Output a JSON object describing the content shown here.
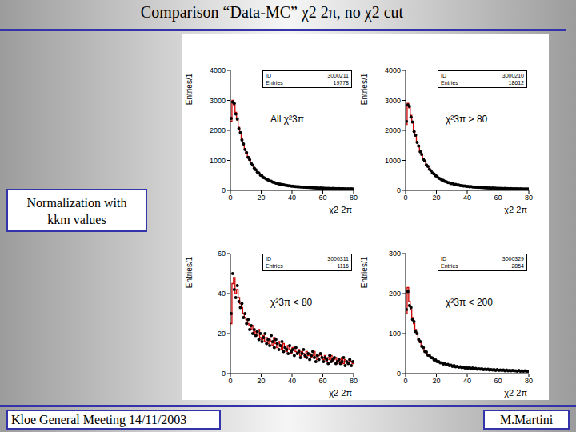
{
  "slide": {
    "title": "Comparison “Data-MC” χ2 2π, no χ2 cut",
    "note": [
      "Normalization with",
      "kkm values"
    ],
    "footer_left": "Kloe General Meeting 14/11/2003",
    "footer_right": "M.Martini"
  },
  "chart_data": [
    {
      "type": "histogram",
      "annotation": "All χ²3π",
      "stats": [
        [
          "ID",
          "3000211"
        ],
        [
          "Entries",
          "19778"
        ]
      ],
      "xlabel": "χ2 2π",
      "ylabel": "Entries/1",
      "xlim": [
        0,
        80
      ],
      "xticks": [
        0,
        20,
        40,
        60,
        80
      ],
      "ylim": [
        0,
        4000
      ],
      "yticks": [
        0,
        1000,
        2000,
        3000,
        4000
      ],
      "grid": false,
      "bins": [
        0,
        1,
        2,
        3,
        4,
        5,
        6,
        7,
        8,
        9,
        10,
        11,
        12,
        13,
        14,
        15,
        16,
        17,
        18,
        19,
        20,
        21,
        22,
        23,
        24,
        25,
        26,
        27,
        28,
        29,
        30,
        31,
        32,
        33,
        34,
        35,
        36,
        37,
        38,
        39,
        40,
        41,
        42,
        43,
        44,
        45,
        46,
        47,
        48,
        49,
        50,
        51,
        52,
        53,
        54,
        55,
        56,
        57,
        58,
        59,
        60,
        61,
        62,
        63,
        64,
        65,
        66,
        67,
        68,
        69,
        70,
        71,
        72,
        73,
        74,
        75,
        76,
        77,
        78,
        79,
        80
      ],
      "series": [
        {
          "type": "line",
          "line_style": "step",
          "color": "#cc0000",
          "values": [
            2300,
            3000,
            2850,
            2600,
            2350,
            2100,
            1900,
            1700,
            1530,
            1380,
            1240,
            1120,
            1010,
            910,
            830,
            750,
            680,
            620,
            570,
            520,
            480,
            440,
            405,
            375,
            345,
            320,
            300,
            280,
            262,
            246,
            232,
            218,
            206,
            195,
            185,
            176,
            167,
            159,
            152,
            145,
            139,
            133,
            128,
            123,
            118,
            114,
            110,
            106,
            102,
            99,
            96,
            93,
            90,
            87,
            85,
            82,
            80,
            78,
            76,
            74,
            72,
            70,
            68,
            67,
            65,
            64,
            62,
            61,
            60,
            58,
            57,
            56,
            55,
            54,
            53,
            52,
            51,
            50,
            49,
            48
          ]
        },
        {
          "type": "scatter",
          "marker": "circle",
          "color": "#000000",
          "values": [
            2400,
            2950,
            2900,
            2550,
            2380,
            2060,
            1930,
            1680,
            1550,
            1360,
            1260,
            1100,
            1030,
            900,
            840,
            740,
            690,
            610,
            580,
            510,
            490,
            430,
            410,
            370,
            350,
            315,
            305,
            275,
            265,
            240,
            235,
            215,
            210,
            192,
            188,
            172,
            170,
            155,
            155,
            142,
            141,
            130,
            130,
            120,
            120,
            112,
            112,
            104,
            104,
            97,
            98,
            91,
            92,
            85,
            87,
            80,
            82,
            76,
            78,
            72,
            74,
            68,
            70,
            65,
            67,
            62,
            64,
            59,
            62,
            56,
            59,
            54,
            57,
            52,
            55,
            50,
            53,
            48,
            51,
            46
          ]
        }
      ]
    },
    {
      "type": "histogram",
      "annotation": "χ²3π > 80",
      "stats": [
        [
          "ID",
          "3000210"
        ],
        [
          "Entries",
          "18612"
        ]
      ],
      "xlabel": "χ2 2π",
      "ylabel": "Entries/1",
      "xlim": [
        0,
        80
      ],
      "xticks": [
        0,
        20,
        40,
        60,
        80
      ],
      "ylim": [
        0,
        4000
      ],
      "yticks": [
        0,
        1000,
        2000,
        3000,
        4000
      ],
      "grid": false,
      "bins": [
        0,
        1,
        2,
        3,
        4,
        5,
        6,
        7,
        8,
        9,
        10,
        11,
        12,
        13,
        14,
        15,
        16,
        17,
        18,
        19,
        20,
        21,
        22,
        23,
        24,
        25,
        26,
        27,
        28,
        29,
        30,
        31,
        32,
        33,
        34,
        35,
        36,
        37,
        38,
        39,
        40,
        41,
        42,
        43,
        44,
        45,
        46,
        47,
        48,
        49,
        50,
        51,
        52,
        53,
        54,
        55,
        56,
        57,
        58,
        59,
        60,
        61,
        62,
        63,
        64,
        65,
        66,
        67,
        68,
        69,
        70,
        71,
        72,
        73,
        74,
        75,
        76,
        77,
        78,
        79,
        80
      ],
      "series": [
        {
          "type": "line",
          "line_style": "step",
          "color": "#cc0000",
          "values": [
            2200,
            2900,
            2750,
            2500,
            2250,
            2000,
            1810,
            1620,
            1460,
            1310,
            1180,
            1060,
            960,
            865,
            790,
            710,
            645,
            590,
            540,
            495,
            455,
            420,
            385,
            355,
            330,
            305,
            285,
            265,
            250,
            235,
            220,
            207,
            196,
            185,
            176,
            167,
            159,
            151,
            144,
            138,
            132,
            126,
            121,
            117,
            112,
            108,
            104,
            100,
            97,
            94,
            91,
            88,
            85,
            83,
            80,
            78,
            76,
            74,
            72,
            70,
            68,
            66,
            65,
            63,
            62,
            60,
            59,
            58,
            57,
            55,
            54,
            53,
            52,
            51,
            50,
            49,
            48,
            47,
            46,
            46
          ]
        },
        {
          "type": "scatter",
          "marker": "circle",
          "color": "#000000",
          "values": [
            2300,
            2850,
            2800,
            2450,
            2280,
            1960,
            1840,
            1600,
            1480,
            1290,
            1200,
            1040,
            980,
            850,
            800,
            700,
            655,
            580,
            550,
            485,
            465,
            410,
            390,
            350,
            335,
            300,
            290,
            260,
            255,
            230,
            225,
            203,
            200,
            181,
            180,
            163,
            163,
            147,
            148,
            135,
            135,
            123,
            124,
            114,
            115,
            105,
            107,
            98,
            100,
            92,
            93,
            86,
            87,
            81,
            82,
            76,
            78,
            72,
            74,
            68,
            70,
            64,
            67,
            61,
            64,
            58,
            61,
            56,
            59,
            53,
            56,
            51,
            54,
            49,
            52,
            47,
            50,
            45,
            48,
            44
          ]
        }
      ]
    },
    {
      "type": "histogram",
      "annotation": "χ²3π < 80",
      "stats": [
        [
          "ID",
          "3000311"
        ],
        [
          "Entries",
          "1116"
        ]
      ],
      "xlabel": "χ2 2π",
      "ylabel": "Entries/1",
      "xlim": [
        0,
        80
      ],
      "xticks": [
        0,
        20,
        40,
        60,
        80
      ],
      "ylim": [
        0,
        60
      ],
      "yticks": [
        0,
        20,
        40,
        60
      ],
      "grid": false,
      "bins": [
        0,
        1,
        2,
        3,
        4,
        5,
        6,
        7,
        8,
        9,
        10,
        11,
        12,
        13,
        14,
        15,
        16,
        17,
        18,
        19,
        20,
        21,
        22,
        23,
        24,
        25,
        26,
        27,
        28,
        29,
        30,
        31,
        32,
        33,
        34,
        35,
        36,
        37,
        38,
        39,
        40,
        41,
        42,
        43,
        44,
        45,
        46,
        47,
        48,
        49,
        50,
        51,
        52,
        53,
        54,
        55,
        56,
        57,
        58,
        59,
        60,
        61,
        62,
        63,
        64,
        65,
        66,
        67,
        68,
        69,
        70,
        71,
        72,
        73,
        74,
        75,
        76,
        77,
        78,
        79,
        80
      ],
      "series": [
        {
          "type": "line",
          "line_style": "step",
          "color": "#cc0000",
          "values": [
            25,
            45,
            48,
            40,
            42,
            38,
            35,
            33,
            30,
            28,
            27,
            25,
            24,
            22,
            24,
            20,
            21,
            19,
            22,
            18,
            17,
            19,
            16,
            18,
            15,
            17,
            16,
            14,
            18,
            15,
            13,
            16,
            14,
            12,
            15,
            13,
            11,
            14,
            12,
            10,
            13,
            12,
            11,
            10,
            12,
            9,
            11,
            10,
            8,
            11,
            9,
            10,
            8,
            9,
            11,
            8,
            7,
            9,
            10,
            8,
            7,
            9,
            6,
            8,
            7,
            9,
            6,
            7,
            8,
            5,
            7,
            6,
            8,
            5,
            7,
            6,
            5,
            7,
            6,
            5
          ]
        },
        {
          "type": "scatter",
          "marker": "circle",
          "color": "#000000",
          "values": [
            30,
            50,
            42,
            38,
            44,
            36,
            33,
            35,
            28,
            30,
            25,
            27,
            22,
            24,
            20,
            22,
            19,
            21,
            17,
            20,
            16,
            18,
            20,
            15,
            17,
            14,
            19,
            16,
            13,
            17,
            15,
            12,
            14,
            16,
            11,
            13,
            12,
            10,
            14,
            11,
            12,
            9,
            13,
            10,
            11,
            8,
            10,
            12,
            9,
            8,
            10,
            7,
            9,
            11,
            8,
            6,
            9,
            7,
            10,
            8,
            6,
            8,
            7,
            5,
            9,
            6,
            7,
            8,
            5,
            6,
            7,
            5,
            6,
            8,
            4,
            6,
            5,
            7,
            4,
            6
          ]
        }
      ]
    },
    {
      "type": "histogram",
      "annotation": "χ²3π < 200",
      "stats": [
        [
          "ID",
          "3000329"
        ],
        [
          "Entries",
          "2854"
        ]
      ],
      "xlabel": "χ2 2π",
      "ylabel": "Entries/1",
      "xlim": [
        0,
        80
      ],
      "xticks": [
        0,
        20,
        40,
        60,
        80
      ],
      "ylim": [
        0,
        300
      ],
      "yticks": [
        0,
        100,
        200,
        300
      ],
      "grid": false,
      "bins": [
        0,
        1,
        2,
        3,
        4,
        5,
        6,
        7,
        8,
        9,
        10,
        11,
        12,
        13,
        14,
        15,
        16,
        17,
        18,
        19,
        20,
        21,
        22,
        23,
        24,
        25,
        26,
        27,
        28,
        29,
        30,
        31,
        32,
        33,
        34,
        35,
        36,
        37,
        38,
        39,
        40,
        41,
        42,
        43,
        44,
        45,
        46,
        47,
        48,
        49,
        50,
        51,
        52,
        53,
        54,
        55,
        56,
        57,
        58,
        59,
        60,
        61,
        62,
        63,
        64,
        65,
        66,
        67,
        68,
        69,
        70,
        71,
        72,
        73,
        74,
        75,
        76,
        77,
        78,
        79,
        80
      ],
      "series": [
        {
          "type": "line",
          "line_style": "step",
          "color": "#cc0000",
          "values": [
            150,
            215,
            180,
            160,
            140,
            125,
            110,
            98,
            88,
            78,
            70,
            63,
            57,
            52,
            48,
            44,
            41,
            38,
            35,
            33,
            31,
            29,
            28,
            26,
            25,
            24,
            23,
            22,
            21,
            20,
            19,
            19,
            18,
            17,
            17,
            16,
            16,
            15,
            15,
            14,
            14,
            14,
            13,
            13,
            13,
            12,
            12,
            12,
            11,
            11,
            11,
            11,
            10,
            10,
            10,
            10,
            10,
            9,
            9,
            9,
            9,
            9,
            9,
            8,
            8,
            8,
            8,
            8,
            8,
            8,
            7,
            7,
            7,
            7,
            7,
            7,
            7,
            7,
            6,
            6
          ]
        },
        {
          "type": "scatter",
          "marker": "circle",
          "color": "#000000",
          "values": [
            160,
            205,
            170,
            165,
            135,
            130,
            105,
            100,
            85,
            80,
            68,
            65,
            55,
            54,
            46,
            45,
            40,
            39,
            34,
            34,
            30,
            30,
            27,
            27,
            24,
            25,
            22,
            23,
            20,
            21,
            18,
            20,
            17,
            18,
            16,
            17,
            15,
            16,
            14,
            15,
            13,
            15,
            12,
            14,
            12,
            13,
            11,
            12,
            11,
            12,
            10,
            11,
            10,
            11,
            9,
            10,
            9,
            10,
            8,
            10,
            8,
            9,
            8,
            9,
            7,
            9,
            7,
            8,
            7,
            8,
            7,
            7,
            6,
            8,
            6,
            7,
            6,
            7,
            6,
            6
          ]
        }
      ]
    }
  ]
}
